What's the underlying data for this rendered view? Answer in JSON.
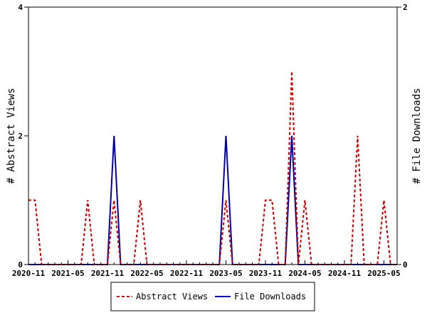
{
  "chart_data": {
    "type": "line",
    "x": [
      "2020-11",
      "2020-12",
      "2021-01",
      "2021-02",
      "2021-03",
      "2021-04",
      "2021-05",
      "2021-06",
      "2021-07",
      "2021-08",
      "2021-09",
      "2021-10",
      "2021-11",
      "2021-12",
      "2022-01",
      "2022-02",
      "2022-03",
      "2022-04",
      "2022-05",
      "2022-06",
      "2022-07",
      "2022-08",
      "2022-09",
      "2022-10",
      "2022-11",
      "2022-12",
      "2023-01",
      "2023-02",
      "2023-03",
      "2023-04",
      "2023-05",
      "2023-06",
      "2023-07",
      "2023-08",
      "2023-09",
      "2023-10",
      "2023-11",
      "2023-12",
      "2024-01",
      "2024-02",
      "2024-03",
      "2024-04",
      "2024-05",
      "2024-06",
      "2024-07",
      "2024-08",
      "2024-09",
      "2024-10",
      "2024-11",
      "2024-12",
      "2025-01",
      "2025-02",
      "2025-03",
      "2025-04",
      "2025-05",
      "2025-06",
      "2025-07"
    ],
    "x_tick_labels": [
      "2020-11",
      "2021-05",
      "2021-11",
      "2022-05",
      "2022-11",
      "2023-05",
      "2023-11",
      "2024-05",
      "2024-11",
      "2025-05"
    ],
    "series": [
      {
        "name": "Abstract Views",
        "axis": "left",
        "color": "#cc0000",
        "style": "dashed",
        "values": [
          1,
          1,
          0,
          0,
          0,
          0,
          0,
          0,
          0,
          1,
          0,
          0,
          0,
          1,
          0,
          0,
          0,
          1,
          0,
          0,
          0,
          0,
          0,
          0,
          0,
          0,
          0,
          0,
          0,
          0,
          1,
          0,
          0,
          0,
          0,
          0,
          1,
          1,
          0,
          0,
          3,
          0,
          1,
          0,
          0,
          0,
          0,
          0,
          0,
          0,
          2,
          0,
          0,
          0,
          1,
          0,
          0
        ]
      },
      {
        "name": "File Downloads",
        "axis": "right",
        "color": "#0000aa",
        "style": "solid",
        "values": [
          0,
          0,
          0,
          0,
          0,
          0,
          0,
          0,
          0,
          0,
          0,
          0,
          0,
          1,
          0,
          0,
          0,
          0,
          0,
          0,
          0,
          0,
          0,
          0,
          0,
          0,
          0,
          0,
          0,
          0,
          1,
          0,
          0,
          0,
          0,
          0,
          0,
          0,
          0,
          0,
          1,
          0,
          0,
          0,
          0,
          0,
          0,
          0,
          0,
          0,
          0,
          0,
          0,
          0,
          0,
          0,
          0
        ]
      }
    ],
    "ylabel": "# Abstract Views",
    "ylabel_right": "# File Downloads",
    "ylim": [
      0,
      4
    ],
    "ylim_right": [
      0,
      2
    ],
    "yticks": [
      0,
      2,
      4
    ],
    "yticks_right": [
      0,
      2
    ],
    "grid": false,
    "legend_position": "bottom-center"
  }
}
